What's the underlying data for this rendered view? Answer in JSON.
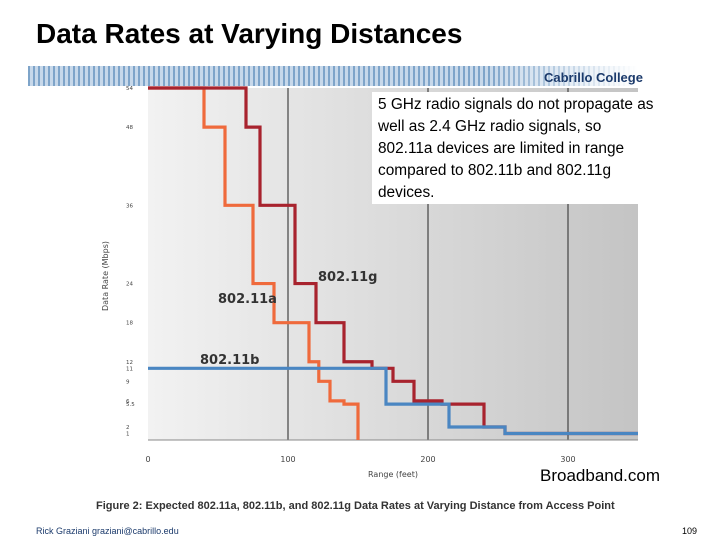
{
  "slide": {
    "title": "Data Rates at Varying Distances",
    "college": "Cabrillo College",
    "callout": "5 GHz radio signals do not propagate as well as 2.4 GHz radio signals, so 802.11a devices are limited in range compared to 802.11b and 802.11g devices.",
    "source": "Broadband.com",
    "caption": "Figure 2:  Expected 802.11a, 802.11b, and 802.11g Data Rates at Varying Distance from Access Point",
    "author": "Rick Graziani  graziani@cabrillo.edu",
    "page_number": "109"
  },
  "colors": {
    "a": "#ef6a3c",
    "b": "#4a86c2",
    "g": "#a8232e",
    "plot_bg_light": "#f2f2f2",
    "plot_bg_dark": "#c4c4c4",
    "grid": "#444444"
  },
  "chart_data": {
    "type": "line",
    "step": true,
    "title": "",
    "xlabel": "Range (feet)",
    "ylabel": "Data Rate (Mbps)",
    "xlim": [
      0,
      350
    ],
    "ylim": [
      0,
      54
    ],
    "x_ticks": [
      0,
      100,
      200,
      300
    ],
    "y_ticks": [
      "54",
      "48",
      "36",
      "24",
      "18",
      "12",
      "11",
      "9",
      "6",
      "5.5",
      "2",
      "1"
    ],
    "grid_x": [
      100,
      200,
      300
    ],
    "series": [
      {
        "name": "802.11a",
        "label": "802.11a",
        "color_key": "a",
        "points": [
          [
            0,
            54
          ],
          [
            40,
            54
          ],
          [
            40,
            48
          ],
          [
            55,
            48
          ],
          [
            55,
            36
          ],
          [
            75,
            36
          ],
          [
            75,
            24
          ],
          [
            90,
            24
          ],
          [
            90,
            18
          ],
          [
            115,
            18
          ],
          [
            115,
            12
          ],
          [
            122,
            12
          ],
          [
            122,
            9
          ],
          [
            130,
            9
          ],
          [
            130,
            6
          ],
          [
            140,
            6
          ],
          [
            140,
            5.5
          ],
          [
            150,
            5.5
          ],
          [
            150,
            0
          ]
        ]
      },
      {
        "name": "802.11g",
        "label": "802.11g",
        "color_key": "g",
        "points": [
          [
            0,
            54
          ],
          [
            70,
            54
          ],
          [
            70,
            48
          ],
          [
            80,
            48
          ],
          [
            80,
            36
          ],
          [
            105,
            36
          ],
          [
            105,
            24
          ],
          [
            120,
            24
          ],
          [
            120,
            18
          ],
          [
            140,
            18
          ],
          [
            140,
            12
          ],
          [
            160,
            12
          ],
          [
            160,
            11
          ],
          [
            175,
            11
          ],
          [
            175,
            9
          ],
          [
            190,
            9
          ],
          [
            190,
            6
          ],
          [
            210,
            6
          ],
          [
            210,
            5.5
          ],
          [
            240,
            5.5
          ],
          [
            240,
            2
          ],
          [
            255,
            2
          ],
          [
            255,
            1
          ],
          [
            350,
            1
          ]
        ]
      },
      {
        "name": "802.11b",
        "label": "802.11b",
        "color_key": "b",
        "points": [
          [
            0,
            11
          ],
          [
            170,
            11
          ],
          [
            170,
            5.5
          ],
          [
            215,
            5.5
          ],
          [
            215,
            2
          ],
          [
            255,
            2
          ],
          [
            255,
            1
          ],
          [
            350,
            1
          ]
        ]
      }
    ]
  }
}
